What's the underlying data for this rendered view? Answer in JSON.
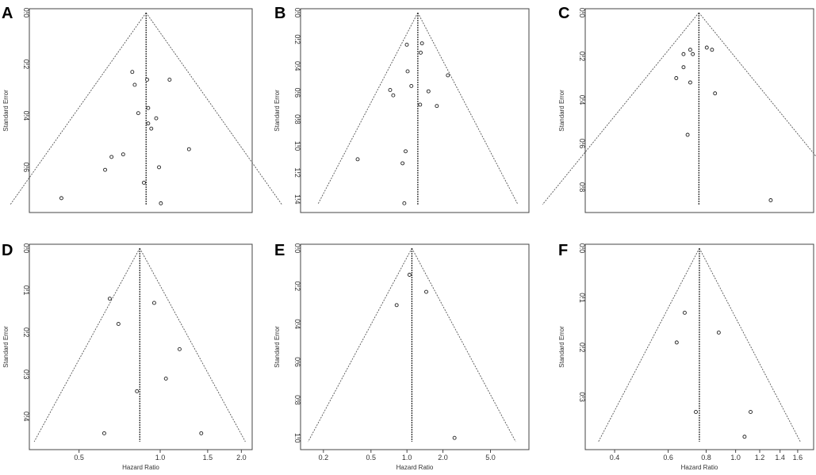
{
  "chart_data": [
    {
      "panel": "A",
      "type": "scatter",
      "subtype": "funnel",
      "xlabel": "",
      "ylabel": "Standard Error",
      "xscale": "log",
      "pooled": 0.87,
      "xlim": [
        0.27,
        2.5
      ],
      "ylim": [
        0.745,
        0
      ],
      "xticks": [],
      "yticks": [
        0.0,
        0.2,
        0.4,
        0.6
      ],
      "x": [
        0.35,
        0.56,
        0.6,
        0.68,
        0.75,
        0.77,
        0.8,
        0.85,
        0.88,
        0.89,
        0.89,
        0.92,
        0.97,
        1.0,
        1.02,
        1.12,
        1.38
      ],
      "y": [
        0.72,
        0.61,
        0.56,
        0.55,
        0.23,
        0.28,
        0.39,
        0.66,
        0.26,
        0.37,
        0.43,
        0.45,
        0.41,
        0.6,
        0.74,
        0.26,
        0.53
      ]
    },
    {
      "panel": "B",
      "type": "scatter",
      "subtype": "funnel",
      "xlabel": "",
      "ylabel": "Standard Error",
      "xscale": "log",
      "pooled": 1.2,
      "xlim": [
        0.055,
        22
      ],
      "ylim": [
        1.44,
        0
      ],
      "xticks": [],
      "yticks": [
        0.0,
        0.2,
        0.4,
        0.6,
        0.8,
        1.0,
        1.2,
        1.4
      ],
      "x": [
        0.22,
        0.55,
        0.6,
        0.78,
        0.82,
        0.85,
        0.88,
        0.9,
        1.0,
        1.28,
        1.3,
        1.35,
        1.62,
        2.05,
        2.8
      ],
      "y": [
        1.1,
        0.58,
        0.62,
        1.13,
        1.43,
        1.04,
        0.24,
        0.44,
        0.55,
        0.69,
        0.3,
        0.23,
        0.59,
        0.7,
        0.47
      ]
    },
    {
      "panel": "C",
      "type": "scatter",
      "subtype": "funnel",
      "xlabel": "",
      "ylabel": "Standard Error",
      "xscale": "log",
      "pooled": 0.77,
      "xlim": [
        0.24,
        2.5
      ],
      "ylim": [
        0.88,
        0
      ],
      "xticks": [],
      "yticks": [
        0.0,
        0.2,
        0.4,
        0.6,
        0.8
      ],
      "x": [
        0.6,
        0.65,
        0.65,
        0.68,
        0.7,
        0.7,
        0.72,
        0.84,
        0.89,
        0.92,
        1.7
      ],
      "y": [
        0.3,
        0.25,
        0.19,
        0.56,
        0.32,
        0.17,
        0.19,
        0.16,
        0.17,
        0.37,
        0.86
      ]
    },
    {
      "panel": "D",
      "type": "scatter",
      "subtype": "funnel",
      "xlabel": "Hazard Ratio",
      "ylabel": "Standard Error",
      "xscale": "log",
      "pooled": 0.84,
      "xlim": [
        0.35,
        2.05
      ],
      "ylim": [
        0.46,
        0
      ],
      "xticks": [
        0.5,
        1.0,
        1.5,
        2.0
      ],
      "xtick_labels": [
        "0.5",
        "1.0",
        "1.5",
        "2.0"
      ],
      "yticks": [
        0.0,
        0.1,
        0.2,
        0.3,
        0.4
      ],
      "x": [
        0.62,
        0.65,
        0.7,
        0.82,
        0.95,
        1.05,
        1.18,
        1.42
      ],
      "y": [
        0.44,
        0.12,
        0.18,
        0.34,
        0.13,
        0.31,
        0.24,
        0.44
      ]
    },
    {
      "panel": "E",
      "type": "scatter",
      "subtype": "funnel",
      "xlabel": "Hazard Ratio",
      "ylabel": "Standard Error",
      "xscale": "log",
      "pooled": 1.1,
      "xlim": [
        0.15,
        9.0
      ],
      "ylim": [
        1.02,
        0
      ],
      "xticks": [
        0.2,
        0.5,
        1.0,
        2.0,
        5.0
      ],
      "xtick_labels": [
        "0.2",
        "0.5",
        "1.0",
        "2.0",
        "5.0"
      ],
      "yticks": [
        0.0,
        0.2,
        0.4,
        0.6,
        0.8,
        1.0
      ],
      "x": [
        0.82,
        1.05,
        1.45,
        2.5
      ],
      "y": [
        0.3,
        0.14,
        0.23,
        1.0
      ]
    },
    {
      "panel": "F",
      "type": "scatter",
      "subtype": "funnel",
      "xlabel": "Hazard Ratio",
      "ylabel": "Standard Error",
      "xscale": "log",
      "pooled": 0.76,
      "xlim": [
        0.34,
        1.7
      ],
      "ylim": [
        0.39,
        0
      ],
      "xticks": [
        0.4,
        0.6,
        0.8,
        1.0,
        1.2,
        1.4,
        1.6
      ],
      "xtick_labels": [
        "0.4",
        "0.6",
        "0.8",
        "1.0",
        "1.2",
        "1.4",
        "1.6"
      ],
      "yticks": [
        0.0,
        0.1,
        0.2,
        0.3
      ],
      "x": [
        0.64,
        0.68,
        0.74,
        0.88,
        1.07,
        1.12
      ],
      "y": [
        0.19,
        0.13,
        0.33,
        0.17,
        0.38,
        0.33
      ]
    }
  ]
}
